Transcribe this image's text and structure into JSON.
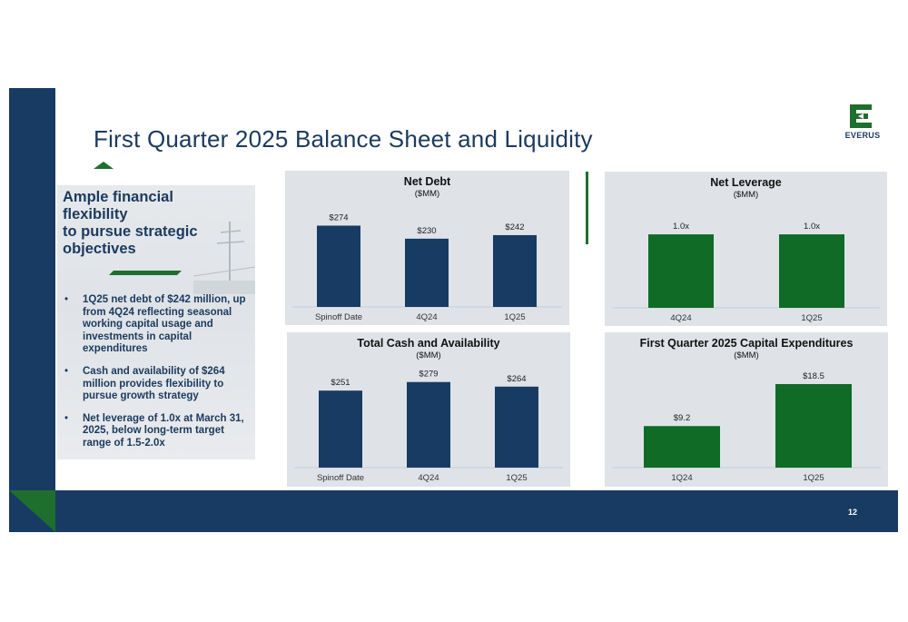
{
  "slide": {
    "title": "First Quarter 2025 Balance Sheet and Liquidity",
    "page_number": "12",
    "logo_text": "EVERUS",
    "colors": {
      "navy": "#183b63",
      "green": "#1e6e2e",
      "bar_green": "#0f6b26",
      "panel_gray": "#dfe3e8"
    }
  },
  "side_panel": {
    "heading": "Ample financial flexibility to pursue strategic objectives",
    "heading_lines": [
      "Ample financial",
      "flexibility",
      "to pursue strategic",
      "objectives"
    ],
    "bullets": [
      "1Q25 net debt of $242 million, up from 4Q24 reflecting seasonal working capital usage and investments in capital expenditures",
      "Cash and availability of $264 million provides flexibility to pursue growth strategy",
      "Net leverage of 1.0x at March 31, 2025, below long-term target range of 1.5-2.0x"
    ],
    "bullet_marker": "•"
  },
  "chart_data": [
    {
      "type": "bar",
      "title": "Net Debt",
      "subtitle": "($MM)",
      "categories": [
        "Spinoff Date",
        "4Q24",
        "1Q25"
      ],
      "values": [
        274,
        230,
        242
      ],
      "labels": [
        "$274",
        "$230",
        "$242"
      ],
      "color": "#183b63",
      "ylim": [
        0,
        300
      ]
    },
    {
      "type": "bar",
      "title": "Net Leverage",
      "subtitle": "($MM)",
      "categories": [
        "4Q24",
        "1Q25"
      ],
      "values": [
        1.0,
        1.0
      ],
      "labels": [
        "1.0x",
        "1.0x"
      ],
      "color": "#0f6b26",
      "ylim": [
        0,
        1.1
      ]
    },
    {
      "type": "bar",
      "title": "Total Cash and Availability",
      "subtitle": "($MM)",
      "categories": [
        "Spinoff Date",
        "4Q24",
        "1Q25"
      ],
      "values": [
        251,
        279,
        264
      ],
      "labels": [
        "$251",
        "$279",
        "$264"
      ],
      "color": "#183b63",
      "ylim": [
        0,
        290
      ]
    },
    {
      "type": "bar",
      "title": "First Quarter 2025 Capital Expenditures",
      "subtitle": "($MM)",
      "categories": [
        "1Q24",
        "1Q25"
      ],
      "values": [
        9.2,
        18.5
      ],
      "labels": [
        "$9.2",
        "$18.5"
      ],
      "color": "#0f6b26",
      "ylim": [
        0,
        19.5
      ]
    }
  ]
}
